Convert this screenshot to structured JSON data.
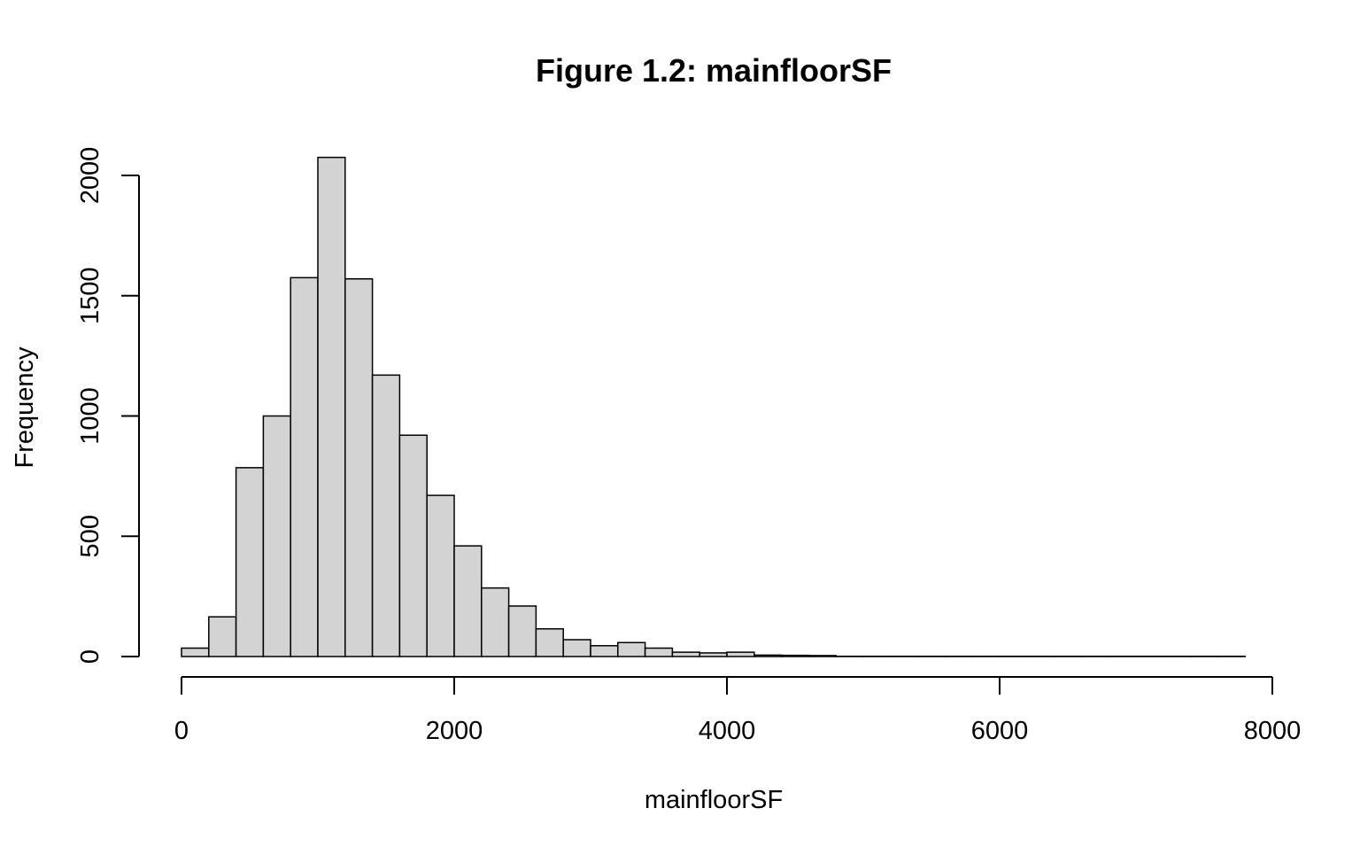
{
  "colors": {
    "bar_fill": "#d3d3d3",
    "bar_stroke": "#000000",
    "axis": "#000000",
    "background": "#ffffff"
  },
  "chart_data": {
    "type": "bar",
    "subtype": "histogram",
    "title": "Figure 1.2: mainfloorSF",
    "xlabel": "mainfloorSF",
    "ylabel": "Frequency",
    "bin_width": 200,
    "bins_start": [
      0,
      200,
      400,
      600,
      800,
      1000,
      1200,
      1400,
      1600,
      1800,
      2000,
      2200,
      2400,
      2600,
      2800,
      3000,
      3200,
      3400,
      3600,
      3800,
      4000,
      4200,
      4400,
      4600,
      4800,
      5000,
      5200,
      5400,
      5600,
      5800,
      6000,
      6200,
      6400,
      6600,
      6800,
      7000,
      7200,
      7400,
      7600
    ],
    "values": [
      35,
      165,
      785,
      1000,
      1575,
      2075,
      1570,
      1170,
      920,
      670,
      460,
      285,
      210,
      115,
      70,
      45,
      58,
      35,
      18,
      15,
      18,
      6,
      5,
      4,
      1,
      1,
      1,
      1,
      1,
      1,
      1,
      1,
      1,
      1,
      1,
      1,
      1,
      1,
      1
    ],
    "xlim": [
      0,
      8000
    ],
    "ylim": [
      0,
      2000
    ],
    "x_ticks": [
      0,
      2000,
      4000,
      6000,
      8000
    ],
    "x_tick_labels": [
      "0",
      "2000",
      "4000",
      "6000",
      "8000"
    ],
    "y_ticks": [
      0,
      500,
      1000,
      1500,
      2000
    ],
    "y_tick_labels": [
      "0",
      "500",
      "1000",
      "1500",
      "2000"
    ],
    "grid": false,
    "legend": "none"
  }
}
